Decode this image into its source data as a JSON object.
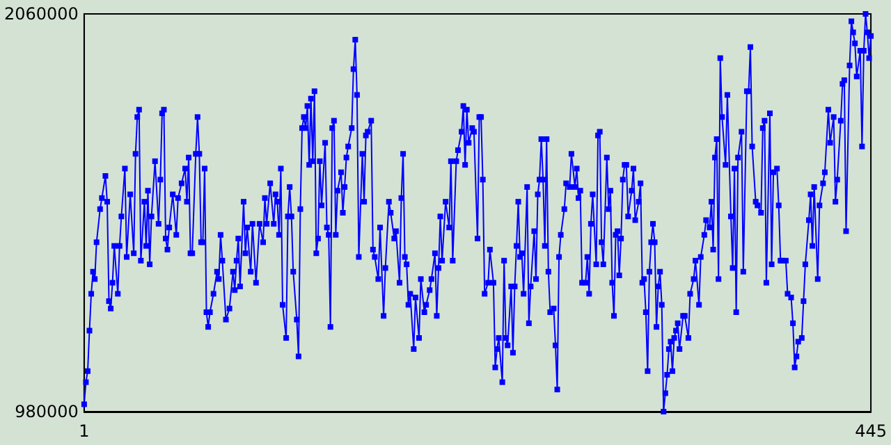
{
  "chart_data": {
    "type": "line",
    "color": "#0000ff",
    "marker": "square",
    "grid": false,
    "xlim": [
      1,
      445
    ],
    "xticks": [
      1,
      445
    ],
    "ylim": [
      980000,
      2060000
    ],
    "yticks": [
      980000,
      2060000
    ],
    "x": [
      1,
      2,
      3,
      4,
      5,
      6,
      7,
      8,
      10,
      11,
      13,
      14,
      15,
      16,
      17,
      18,
      20,
      21,
      22,
      24,
      25,
      27,
      29,
      30,
      31,
      32,
      33,
      35,
      36,
      37,
      38,
      39,
      41,
      43,
      44,
      45,
      46,
      47,
      48,
      49,
      51,
      53,
      54,
      56,
      58,
      59,
      60,
      61,
      62,
      64,
      65,
      66,
      67,
      68,
      69,
      70,
      71,
      72,
      74,
      76,
      77,
      78,
      79,
      81,
      83,
      85,
      86,
      87,
      88,
      89,
      91,
      92,
      93,
      95,
      96,
      98,
      100,
      102,
      103,
      104,
      106,
      108,
      109,
      110,
      111,
      112,
      113,
      115,
      116,
      117,
      118,
      119,
      121,
      122,
      123,
      124,
      125,
      126,
      127,
      128,
      129,
      130,
      131,
      132,
      133,
      134,
      135,
      137,
      138,
      139,
      140,
      141,
      142,
      143,
      144,
      146,
      147,
      148,
      149,
      150,
      152,
      153,
      154,
      155,
      156,
      158,
      159,
      160,
      161,
      163,
      164,
      165,
      167,
      168,
      170,
      171,
      173,
      174,
      176,
      177,
      179,
      180,
      181,
      182,
      183,
      184,
      185,
      187,
      188,
      190,
      191,
      193,
      194,
      196,
      197,
      199,
      200,
      201,
      202,
      203,
      205,
      207,
      208,
      209,
      211,
      212,
      214,
      215,
      216,
      217,
      218,
      220,
      221,
      223,
      224,
      225,
      226,
      227,
      229,
      230,
      232,
      233,
      234,
      235,
      237,
      238,
      239,
      240,
      242,
      243,
      244,
      245,
      246,
      247,
      248,
      249,
      251,
      252,
      253,
      255,
      256,
      257,
      258,
      259,
      260,
      261,
      262,
      263,
      264,
      266,
      267,
      268,
      269,
      270,
      272,
      273,
      275,
      276,
      278,
      279,
      280,
      281,
      282,
      284,
      285,
      286,
      287,
      288,
      290,
      291,
      292,
      293,
      294,
      296,
      297,
      298,
      299,
      300,
      301,
      302,
      303,
      304,
      305,
      306,
      307,
      308,
      310,
      311,
      312,
      314,
      315,
      316,
      317,
      318,
      319,
      320,
      321,
      322,
      323,
      324,
      325,
      326,
      327,
      328,
      329,
      330,
      331,
      332,
      333,
      334,
      335,
      336,
      337,
      339,
      340,
      342,
      343,
      345,
      346,
      348,
      349,
      351,
      352,
      354,
      355,
      356,
      357,
      358,
      359,
      360,
      361,
      363,
      364,
      366,
      367,
      368,
      369,
      370,
      372,
      373,
      375,
      376,
      377,
      378,
      380,
      381,
      383,
      384,
      385,
      386,
      388,
      389,
      390,
      392,
      393,
      394,
      395,
      397,
      398,
      400,
      401,
      402,
      403,
      404,
      406,
      407,
      408,
      410,
      411,
      412,
      413,
      415,
      416,
      418,
      419,
      421,
      422,
      424,
      425,
      426,
      428,
      429,
      430,
      431,
      433,
      434,
      435,
      436,
      437,
      439,
      440,
      441,
      442,
      443,
      444,
      445
    ],
    "values": [
      1000000,
      1060000,
      1090000,
      1200000,
      1300000,
      1360000,
      1340000,
      1440000,
      1530000,
      1560000,
      1620000,
      1550000,
      1280000,
      1260000,
      1330000,
      1430000,
      1300000,
      1430000,
      1510000,
      1640000,
      1400000,
      1570000,
      1410000,
      1680000,
      1780000,
      1800000,
      1390000,
      1550000,
      1430000,
      1580000,
      1380000,
      1510000,
      1660000,
      1490000,
      1610000,
      1790000,
      1800000,
      1450000,
      1420000,
      1480000,
      1570000,
      1460000,
      1560000,
      1600000,
      1640000,
      1550000,
      1670000,
      1410000,
      1410000,
      1680000,
      1780000,
      1680000,
      1440000,
      1440000,
      1640000,
      1250000,
      1210000,
      1250000,
      1300000,
      1360000,
      1340000,
      1460000,
      1390000,
      1230000,
      1260000,
      1360000,
      1310000,
      1390000,
      1450000,
      1320000,
      1550000,
      1410000,
      1480000,
      1360000,
      1490000,
      1330000,
      1490000,
      1440000,
      1560000,
      1490000,
      1600000,
      1490000,
      1570000,
      1550000,
      1460000,
      1640000,
      1270000,
      1180000,
      1510000,
      1590000,
      1510000,
      1360000,
      1230000,
      1130000,
      1530000,
      1750000,
      1780000,
      1750000,
      1810000,
      1650000,
      1830000,
      1660000,
      1850000,
      1410000,
      1450000,
      1660000,
      1540000,
      1710000,
      1480000,
      1460000,
      1210000,
      1750000,
      1770000,
      1460000,
      1580000,
      1630000,
      1520000,
      1590000,
      1670000,
      1700000,
      1750000,
      1910000,
      1990000,
      1840000,
      1400000,
      1680000,
      1550000,
      1730000,
      1740000,
      1770000,
      1420000,
      1400000,
      1340000,
      1480000,
      1240000,
      1370000,
      1550000,
      1520000,
      1450000,
      1470000,
      1330000,
      1560000,
      1680000,
      1400000,
      1380000,
      1270000,
      1300000,
      1150000,
      1290000,
      1180000,
      1340000,
      1250000,
      1270000,
      1310000,
      1340000,
      1410000,
      1240000,
      1370000,
      1510000,
      1390000,
      1550000,
      1480000,
      1660000,
      1390000,
      1660000,
      1690000,
      1740000,
      1810000,
      1650000,
      1800000,
      1710000,
      1750000,
      1740000,
      1450000,
      1780000,
      1780000,
      1610000,
      1300000,
      1330000,
      1420000,
      1330000,
      1100000,
      1150000,
      1180000,
      1060000,
      1390000,
      1180000,
      1160000,
      1320000,
      1140000,
      1320000,
      1430000,
      1550000,
      1400000,
      1410000,
      1300000,
      1590000,
      1220000,
      1320000,
      1470000,
      1340000,
      1570000,
      1610000,
      1720000,
      1610000,
      1430000,
      1720000,
      1360000,
      1250000,
      1260000,
      1160000,
      1040000,
      1400000,
      1460000,
      1530000,
      1600000,
      1590000,
      1680000,
      1590000,
      1640000,
      1560000,
      1580000,
      1330000,
      1330000,
      1400000,
      1300000,
      1490000,
      1570000,
      1380000,
      1730000,
      1740000,
      1440000,
      1380000,
      1670000,
      1530000,
      1580000,
      1330000,
      1240000,
      1460000,
      1470000,
      1350000,
      1450000,
      1610000,
      1650000,
      1650000,
      1510000,
      1580000,
      1640000,
      1500000,
      1550000,
      1600000,
      1330000,
      1340000,
      1250000,
      1090000,
      1360000,
      1440000,
      1490000,
      1440000,
      1210000,
      1320000,
      1360000,
      1270000,
      980000,
      1030000,
      1080000,
      1150000,
      1170000,
      1090000,
      1180000,
      1200000,
      1220000,
      1150000,
      1240000,
      1240000,
      1180000,
      1300000,
      1340000,
      1390000,
      1270000,
      1400000,
      1460000,
      1500000,
      1480000,
      1550000,
      1420000,
      1670000,
      1720000,
      1340000,
      1940000,
      1780000,
      1650000,
      1840000,
      1510000,
      1370000,
      1640000,
      1250000,
      1670000,
      1740000,
      1360000,
      1850000,
      1850000,
      1970000,
      1700000,
      1550000,
      1540000,
      1520000,
      1750000,
      1770000,
      1330000,
      1790000,
      1380000,
      1630000,
      1640000,
      1540000,
      1390000,
      1390000,
      1390000,
      1300000,
      1290000,
      1220000,
      1100000,
      1130000,
      1170000,
      1180000,
      1280000,
      1380000,
      1500000,
      1570000,
      1430000,
      1590000,
      1340000,
      1540000,
      1600000,
      1630000,
      1800000,
      1710000,
      1780000,
      1550000,
      1610000,
      1770000,
      1870000,
      1880000,
      1470000,
      1920000,
      2040000,
      2010000,
      1980000,
      1890000,
      1960000,
      1700000,
      1960000,
      2060000,
      2010000,
      1940000,
      2000000
    ]
  }
}
